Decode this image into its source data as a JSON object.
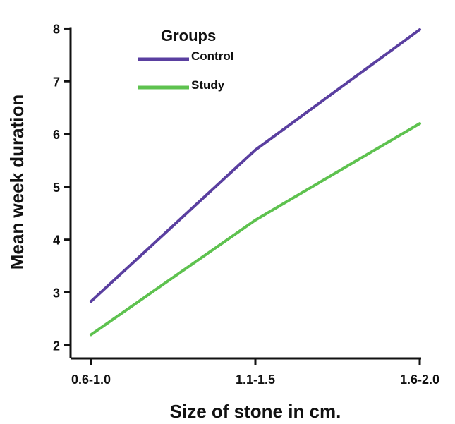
{
  "chart_data": {
    "type": "line",
    "title": "",
    "xlabel": "Size of stone in cm.",
    "ylabel": "Mean week duration",
    "categories": [
      "0.6-1.0",
      "1.1-1.5",
      "1.6-2.0"
    ],
    "ylim": [
      1.75,
      8.3
    ],
    "yticks": [
      2,
      3,
      4,
      5,
      6,
      7,
      8
    ],
    "grid": false,
    "legend": {
      "title": "Groups",
      "placement": "top-left"
    },
    "series": [
      {
        "name": "Control",
        "values": [
          2.83,
          5.7,
          7.98
        ],
        "color": "#5a3fa0"
      },
      {
        "name": "Study",
        "values": [
          2.2,
          4.37,
          6.2
        ],
        "color": "#5ec24f"
      }
    ]
  }
}
